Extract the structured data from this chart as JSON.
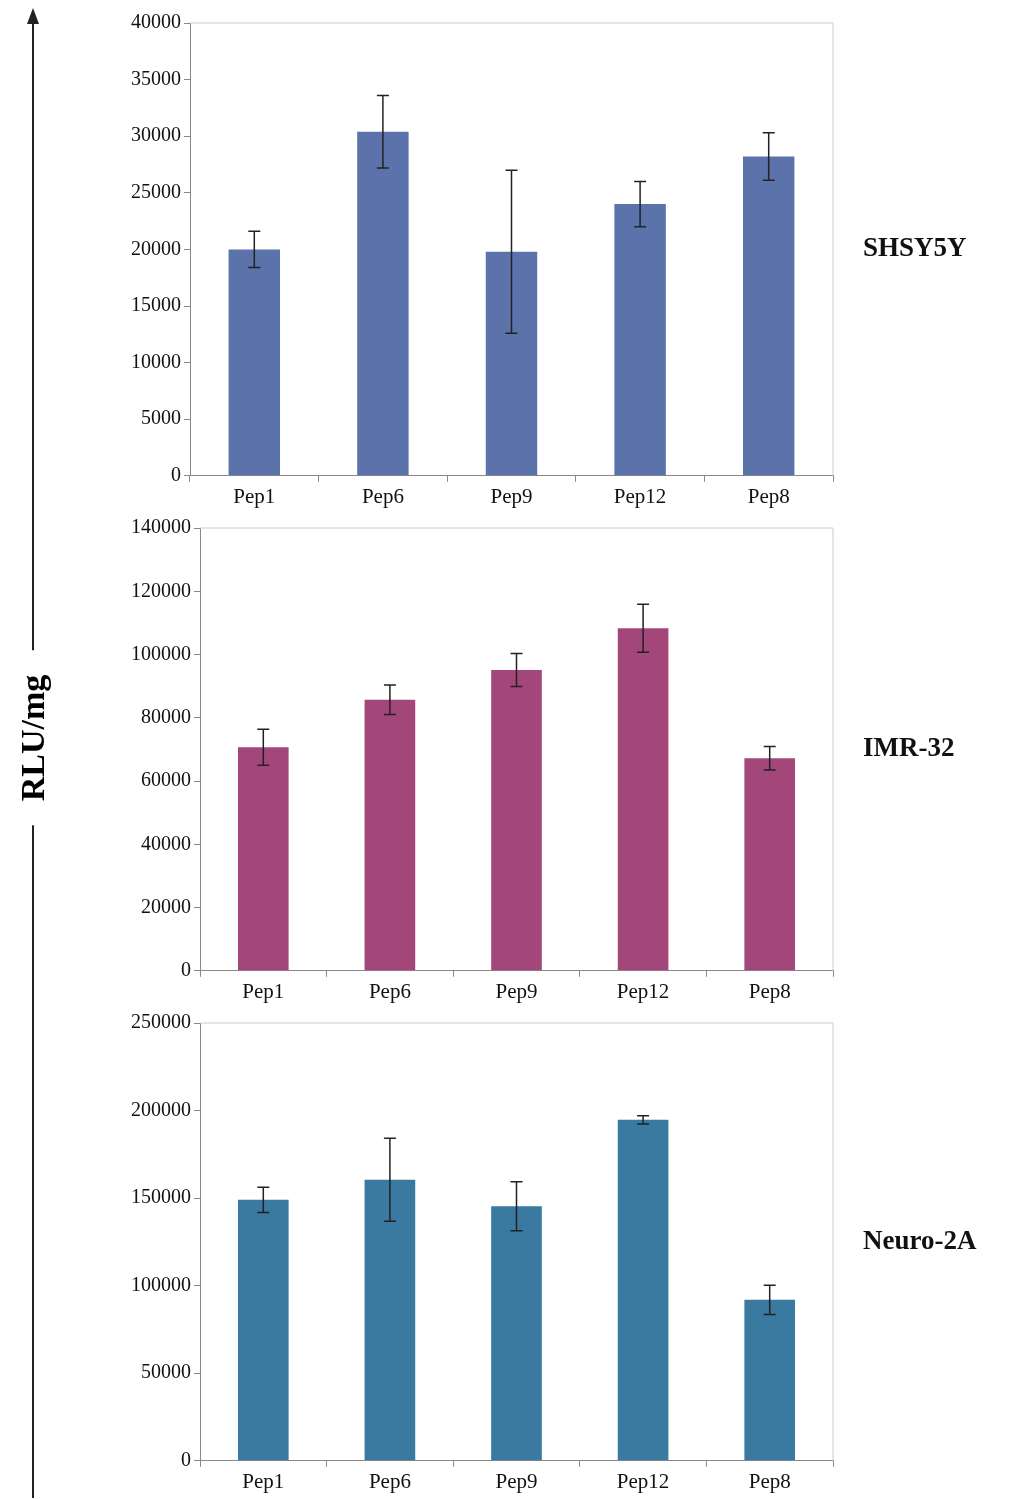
{
  "chart_data": [
    {
      "type": "bar",
      "annotations": [
        "SHSY5Y"
      ],
      "categories": [
        "Pep1",
        "Pep6",
        "Pep9",
        "Pep12",
        "Pep8"
      ],
      "values": [
        20000,
        30400,
        19800,
        24000,
        28200
      ],
      "errors": [
        1600,
        3200,
        7200,
        2000,
        2100
      ],
      "color": "#5b72aa",
      "ylim": [
        0,
        40000
      ],
      "yticks": [
        0,
        5000,
        10000,
        15000,
        20000,
        25000,
        30000,
        35000,
        40000
      ],
      "grid": false,
      "legend": false
    },
    {
      "type": "bar",
      "annotations": [
        "IMR-32"
      ],
      "ylabel": "RLU/mg",
      "categories": [
        "Pep1",
        "Pep6",
        "Pep9",
        "Pep12",
        "Pep8"
      ],
      "values": [
        70700,
        85700,
        95100,
        108300,
        67200
      ],
      "errors": [
        5700,
        4700,
        5200,
        7600,
        3700
      ],
      "color": "#a3477a",
      "ylim": [
        0,
        140000
      ],
      "yticks": [
        0,
        20000,
        40000,
        60000,
        80000,
        100000,
        120000,
        140000
      ],
      "grid": false,
      "legend": false
    },
    {
      "type": "bar",
      "annotations": [
        "Neuro-2A"
      ],
      "categories": [
        "Pep1",
        "Pep6",
        "Pep9",
        "Pep12",
        "Pep8"
      ],
      "values": [
        149000,
        160500,
        145400,
        194700,
        91900
      ],
      "errors": [
        7200,
        23700,
        14000,
        2400,
        8400
      ],
      "color": "#3a79a0",
      "ylim": [
        0,
        250000
      ],
      "yticks": [
        0,
        50000,
        100000,
        150000,
        200000,
        250000
      ],
      "grid": false,
      "legend": false
    }
  ]
}
